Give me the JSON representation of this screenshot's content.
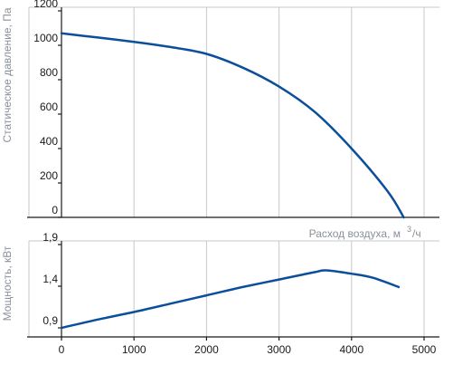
{
  "chart_data": [
    {
      "type": "line",
      "title": "",
      "xlabel": "Расход воздуха, м",
      "xlabel_sup": "3",
      "xlabel_suffix": "/ч",
      "ylabel": "Статическое давление, Па",
      "xlim": [
        -500,
        5000
      ],
      "ylim": [
        0,
        1200
      ],
      "yticks": [
        "1200",
        "1000",
        "800",
        "600",
        "400",
        "200",
        "0"
      ],
      "ytick_values": [
        1200,
        1000,
        800,
        600,
        400,
        200,
        0
      ],
      "grid": true,
      "color": "#0b4f9c",
      "series": [
        {
          "x": [
            0,
            500,
            1000,
            1500,
            2000,
            2500,
            3000,
            3500,
            4000,
            4500,
            4720
          ],
          "y": [
            1070,
            1045,
            1020,
            990,
            950,
            870,
            760,
            610,
            400,
            150,
            0
          ]
        }
      ]
    },
    {
      "type": "line",
      "title": "",
      "xlabel": "",
      "ylabel": "Мощность, кВт",
      "xlim": [
        -500,
        5000
      ],
      "ylim": [
        0.9,
        1.9
      ],
      "yticks": [
        "1,9",
        "1,4",
        "0,9"
      ],
      "ytick_values": [
        1.9,
        1.4,
        0.9
      ],
      "xticks": [
        "0",
        "1000",
        "2000",
        "3000",
        "4000",
        "5000"
      ],
      "xtick_values": [
        0,
        1000,
        2000,
        3000,
        4000,
        5000
      ],
      "grid": true,
      "color": "#0b4f9c",
      "series": [
        {
          "x": [
            0,
            500,
            1000,
            1500,
            2000,
            2500,
            3000,
            3500,
            3650,
            4000,
            4300,
            4650
          ],
          "y": [
            0.9,
            1.0,
            1.09,
            1.19,
            1.29,
            1.39,
            1.48,
            1.57,
            1.59,
            1.55,
            1.5,
            1.39
          ]
        }
      ]
    }
  ]
}
